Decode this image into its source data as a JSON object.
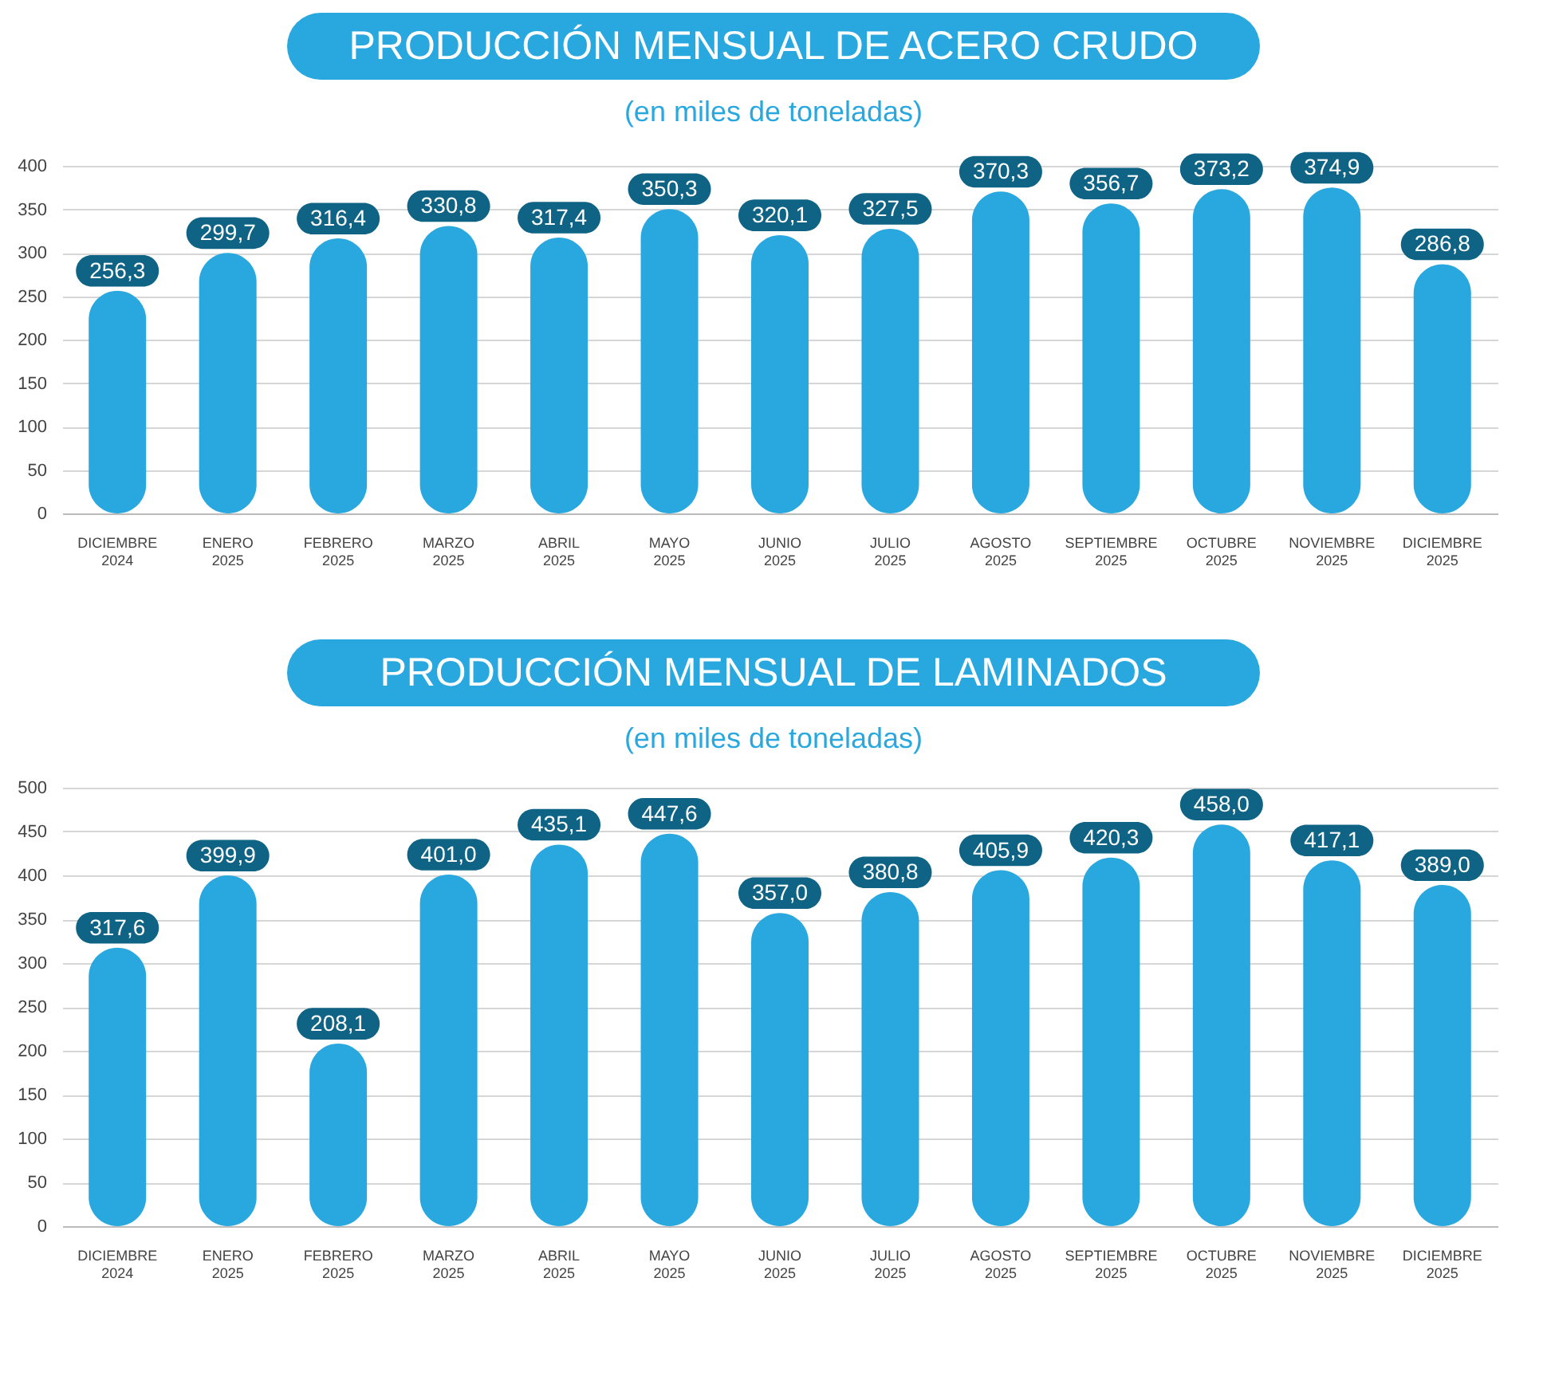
{
  "chart_data": [
    {
      "type": "bar",
      "title": "PRODUCCIÓN MENSUAL DE ACERO CRUDO",
      "subtitle": "(en miles de toneladas)",
      "categories": [
        "DICIEMBRE 2024",
        "ENERO 2025",
        "FEBRERO 2025",
        "MARZO 2025",
        "ABRIL 2025",
        "MAYO 2025",
        "JUNIO 2025",
        "JULIO 2025",
        "AGOSTO 2025",
        "SEPTIEMBRE 2025",
        "OCTUBRE 2025",
        "NOVIEMBRE 2025",
        "DICIEMBRE 2025"
      ],
      "ylim": [
        0,
        400
      ],
      "yticks": [
        0,
        50,
        100,
        150,
        200,
        250,
        300,
        350,
        400
      ],
      "grid": "y",
      "series": [
        {
          "color": "#29a8e0",
          "values": [
            256.3,
            299.7,
            316.4,
            330.8,
            317.4,
            350.3,
            320.1,
            327.5,
            370.3,
            356.7,
            373.2,
            374.9,
            286.8
          ],
          "value_labels": [
            "256,3",
            "299,7",
            "316,4",
            "330,8",
            "317,4",
            "350,3",
            "320,1",
            "327,5",
            "370,3",
            "356,7",
            "373,2",
            "374,9",
            "286,8"
          ]
        }
      ]
    },
    {
      "type": "bar",
      "title": "PRODUCCIÓN MENSUAL DE LAMINADOS",
      "subtitle": "(en miles de toneladas)",
      "categories": [
        "DICIEMBRE 2024",
        "ENERO 2025",
        "FEBRERO 2025",
        "MARZO 2025",
        "ABRIL 2025",
        "MAYO 2025",
        "JUNIO 2025",
        "JULIO 2025",
        "AGOSTO 2025",
        "SEPTIEMBRE 2025",
        "OCTUBRE 2025",
        "NOVIEMBRE 2025",
        "DICIEMBRE 2025"
      ],
      "ylim": [
        0,
        500
      ],
      "yticks": [
        0,
        50,
        100,
        150,
        200,
        250,
        300,
        350,
        400,
        450,
        500
      ],
      "grid": "y",
      "series": [
        {
          "color": "#29a8e0",
          "values": [
            317.6,
            399.9,
            208.1,
            401.0,
            435.1,
            447.6,
            357.0,
            380.8,
            405.9,
            420.3,
            458.0,
            417.1,
            389.0
          ],
          "value_labels": [
            "317,6",
            "399,9",
            "208,1",
            "401,0",
            "435,1",
            "447,6",
            "357,0",
            "380,8",
            "405,9",
            "420,3",
            "458,0",
            "417,1",
            "389,0"
          ]
        }
      ]
    }
  ]
}
